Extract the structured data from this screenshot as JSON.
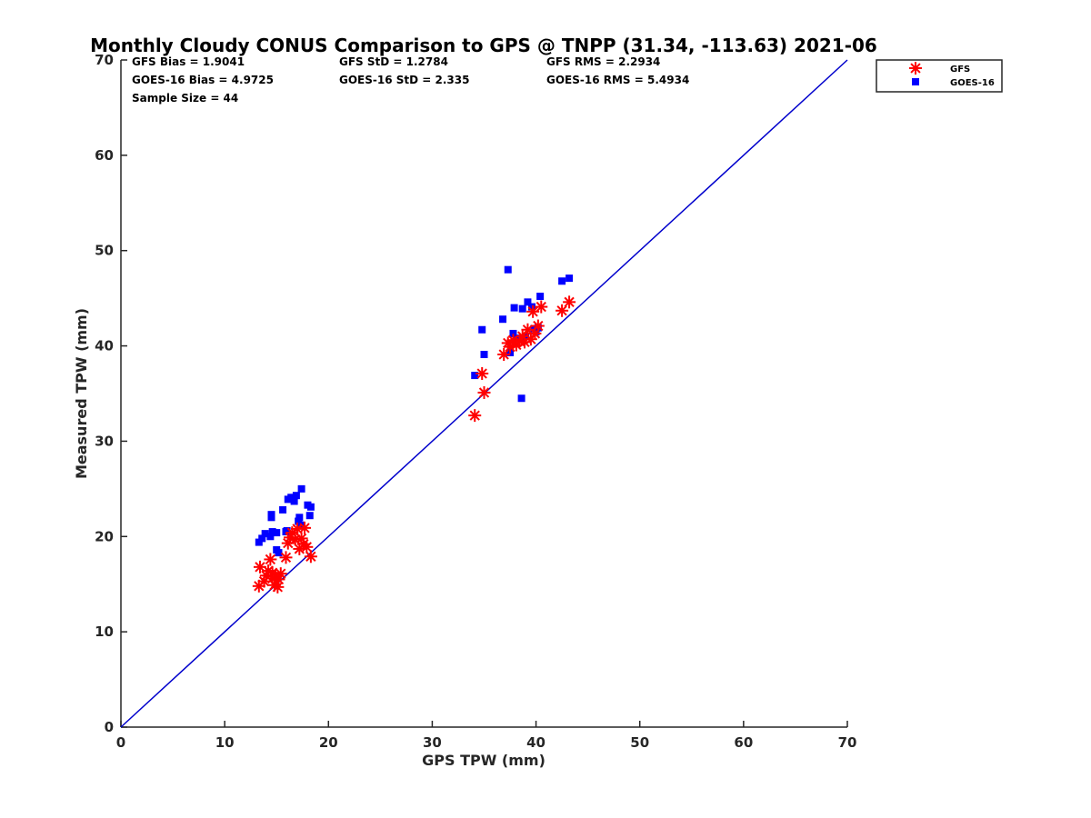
{
  "chart_data": {
    "type": "scatter",
    "title": "Monthly Cloudy CONUS Comparison to GPS @ TNPP (31.34, -113.63) 2021-06",
    "xlabel": "GPS TPW (mm)",
    "ylabel": "Measured TPW (mm)",
    "xlim": [
      0,
      70
    ],
    "ylim": [
      0,
      70
    ],
    "xticks": [
      0,
      10,
      20,
      30,
      40,
      50,
      60,
      70
    ],
    "yticks": [
      0,
      10,
      20,
      30,
      40,
      50,
      60,
      70
    ],
    "legend_position": "outside-top-right",
    "grid": false,
    "one_to_one_line": {
      "x": [
        0,
        70
      ],
      "y": [
        0,
        70
      ],
      "color": "#0000cc"
    },
    "stats": [
      [
        "GFS Bias = 1.9041",
        "GFS StD = 1.2784",
        "GFS RMS = 2.2934"
      ],
      [
        "GOES-16 Bias = 4.9725",
        "GOES-16 StD = 2.335",
        "GOES-16 RMS = 5.4934"
      ],
      [
        "Sample Size = 44"
      ]
    ],
    "series": [
      {
        "name": "GFS",
        "marker": "asterisk",
        "color": "#ff0000",
        "points": [
          [
            13.3,
            14.8
          ],
          [
            13.4,
            16.8
          ],
          [
            13.8,
            15.3
          ],
          [
            14.0,
            15.9
          ],
          [
            14.2,
            16.4
          ],
          [
            14.4,
            17.6
          ],
          [
            14.6,
            16.2
          ],
          [
            14.8,
            14.9
          ],
          [
            14.9,
            15.8
          ],
          [
            15.1,
            14.7
          ],
          [
            15.4,
            16.1
          ],
          [
            15.9,
            17.8
          ],
          [
            16.1,
            19.3
          ],
          [
            16.5,
            20.4
          ],
          [
            16.8,
            19.7
          ],
          [
            17.0,
            20.8
          ],
          [
            17.2,
            18.7
          ],
          [
            17.4,
            19.8
          ],
          [
            17.6,
            19.2
          ],
          [
            17.7,
            20.9
          ],
          [
            17.9,
            18.9
          ],
          [
            18.3,
            17.9
          ],
          [
            34.1,
            32.7
          ],
          [
            34.8,
            37.1
          ],
          [
            35.0,
            35.1
          ],
          [
            36.9,
            39.1
          ],
          [
            37.3,
            40.3
          ],
          [
            37.5,
            39.9
          ],
          [
            37.8,
            40.6
          ],
          [
            38.1,
            40.1
          ],
          [
            38.4,
            40.5
          ],
          [
            38.7,
            41.0
          ],
          [
            38.9,
            40.4
          ],
          [
            39.2,
            41.7
          ],
          [
            39.5,
            40.7
          ],
          [
            39.7,
            43.6
          ],
          [
            39.9,
            41.3
          ],
          [
            40.2,
            42.1
          ],
          [
            40.5,
            44.1
          ],
          [
            42.5,
            43.7
          ],
          [
            43.2,
            44.6
          ],
          [
            15.2,
            15.5
          ],
          [
            16.3,
            19.9
          ],
          [
            14.6,
            15.6
          ]
        ]
      },
      {
        "name": "GOES-16",
        "marker": "square",
        "color": "#0000ff",
        "points": [
          [
            13.3,
            19.4
          ],
          [
            13.6,
            19.8
          ],
          [
            13.9,
            20.3
          ],
          [
            14.4,
            20.0
          ],
          [
            14.6,
            20.5
          ],
          [
            14.5,
            22.0
          ],
          [
            14.5,
            22.3
          ],
          [
            15.0,
            20.4
          ],
          [
            15.0,
            18.6
          ],
          [
            15.2,
            18.3
          ],
          [
            15.6,
            22.8
          ],
          [
            15.9,
            20.5
          ],
          [
            16.1,
            23.9
          ],
          [
            16.4,
            24.1
          ],
          [
            16.7,
            23.7
          ],
          [
            16.9,
            24.3
          ],
          [
            17.1,
            21.6
          ],
          [
            17.2,
            22.0
          ],
          [
            17.3,
            21.2
          ],
          [
            17.4,
            25.0
          ],
          [
            18.0,
            23.3
          ],
          [
            18.3,
            23.1
          ],
          [
            18.2,
            22.2
          ],
          [
            34.1,
            36.9
          ],
          [
            34.8,
            41.7
          ],
          [
            35.0,
            39.1
          ],
          [
            36.8,
            42.8
          ],
          [
            37.3,
            48.0
          ],
          [
            37.5,
            39.3
          ],
          [
            37.9,
            44.0
          ],
          [
            38.6,
            34.5
          ],
          [
            38.7,
            43.9
          ],
          [
            39.0,
            41.0
          ],
          [
            39.2,
            44.6
          ],
          [
            39.6,
            44.1
          ],
          [
            39.8,
            41.8
          ],
          [
            40.0,
            41.5
          ],
          [
            40.2,
            41.9
          ],
          [
            40.4,
            45.2
          ],
          [
            42.5,
            46.8
          ],
          [
            43.2,
            47.1
          ],
          [
            37.8,
            41.3
          ],
          [
            38.2,
            40.8
          ],
          [
            16.0,
            20.6
          ]
        ]
      }
    ]
  }
}
